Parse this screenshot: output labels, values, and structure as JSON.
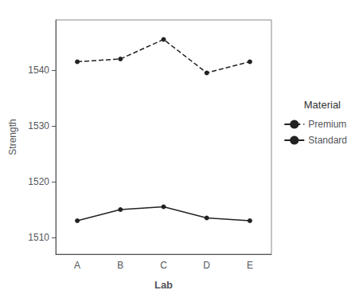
{
  "chart_data": {
    "type": "line",
    "categories": [
      "A",
      "B",
      "C",
      "D",
      "E"
    ],
    "series": [
      {
        "name": "Premium",
        "color": "#222222",
        "line_style": "dashed",
        "marker": "circle",
        "values": [
          1541.5,
          1542.0,
          1545.5,
          1539.5,
          1541.5
        ]
      },
      {
        "name": "Standard",
        "color": "#222222",
        "line_style": "solid",
        "marker": "circle",
        "values": [
          1513.0,
          1515.0,
          1515.5,
          1513.5,
          1513.0
        ]
      }
    ],
    "xlabel": "Lab",
    "ylabel": "Strength",
    "ylim": [
      1507,
      1549
    ],
    "yticks": [
      1510,
      1520,
      1530,
      1540
    ],
    "legend_title": "Material",
    "legend": "right",
    "grid": false
  }
}
